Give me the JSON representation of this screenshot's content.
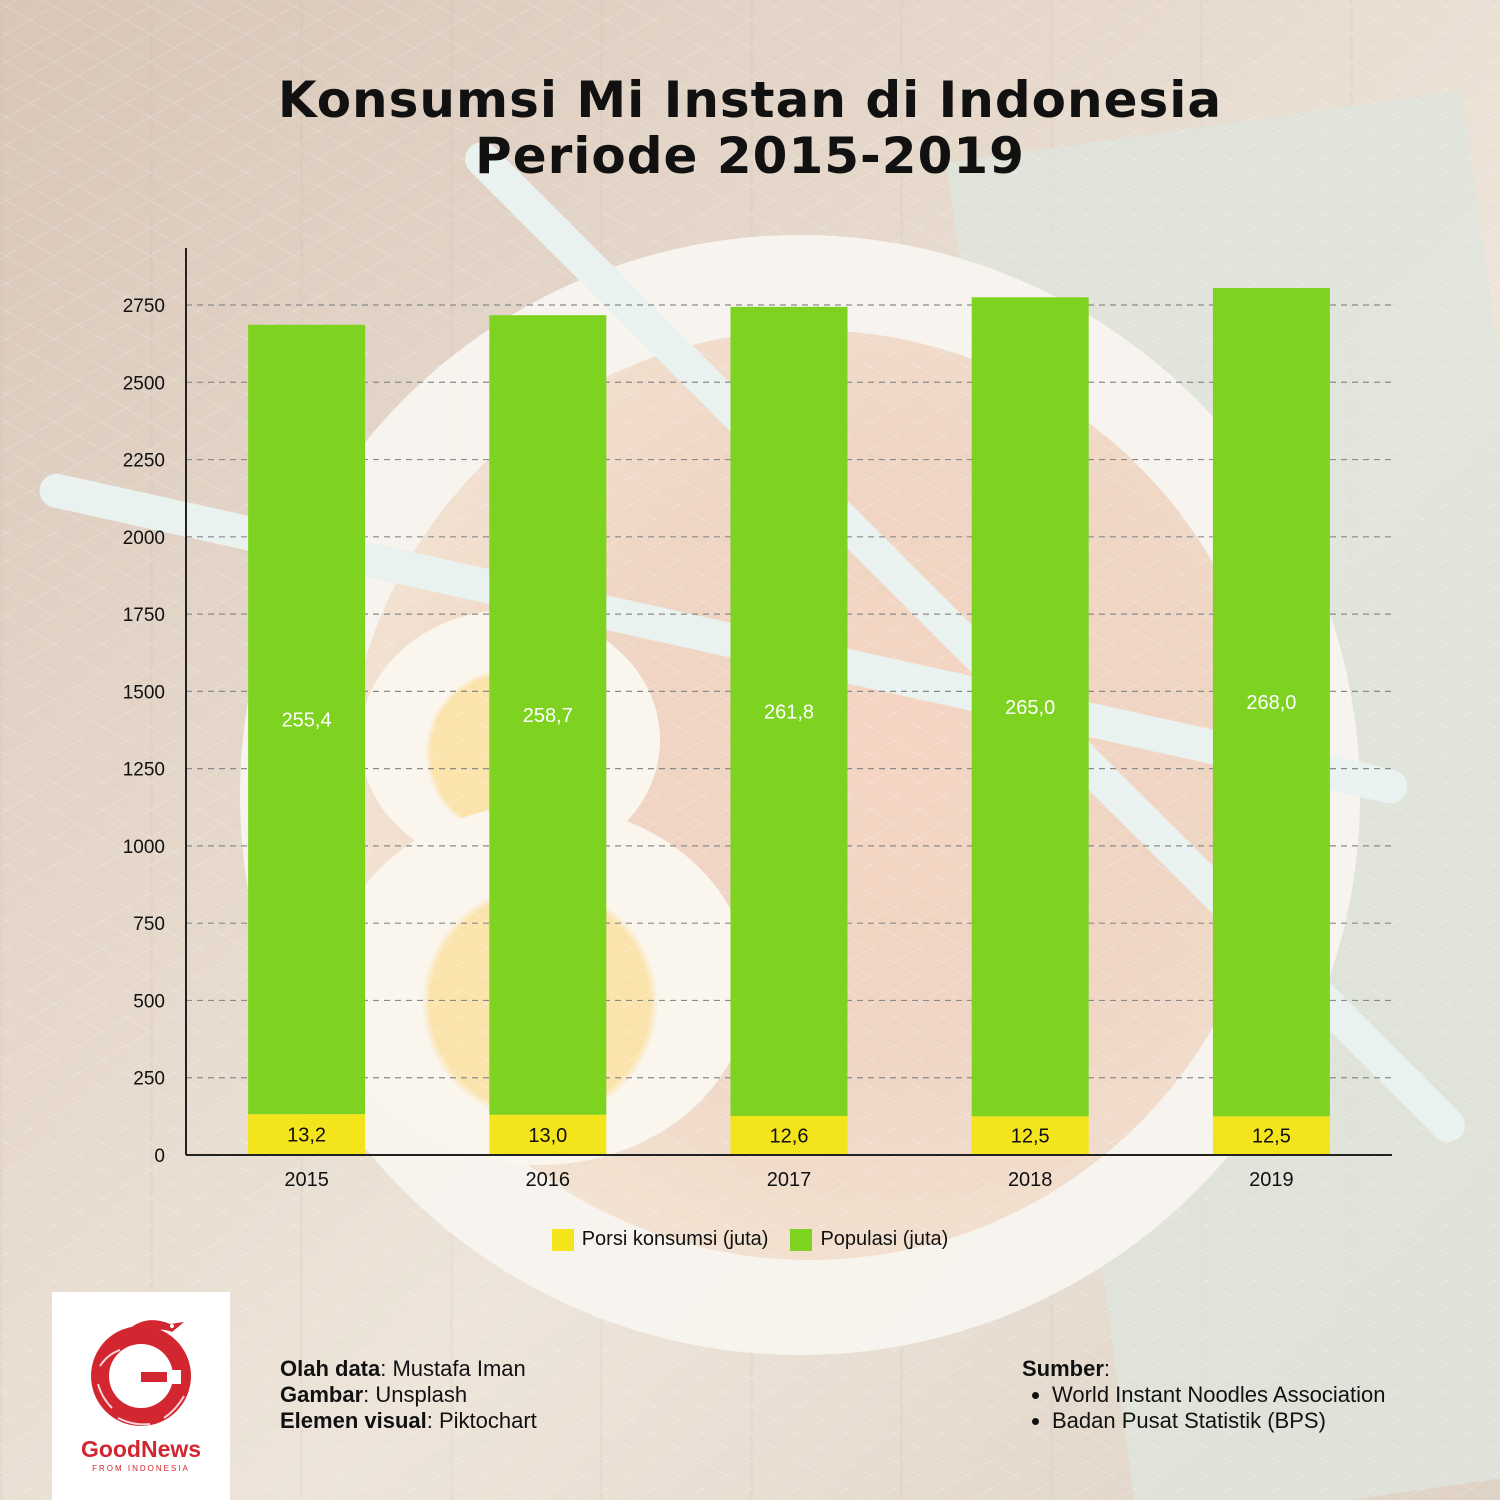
{
  "title": {
    "line1": "Konsumsi Mi Instan di Indonesia",
    "line2": "Periode 2015-2019"
  },
  "chart_data": {
    "type": "bar",
    "stacked": true,
    "categories": [
      "2015",
      "2016",
      "2017",
      "2018",
      "2019"
    ],
    "series": [
      {
        "name": "Porsi konsumsi (juta)",
        "color": "#f4e41c",
        "values": [
          13.2,
          13.0,
          12.6,
          12.5,
          12.5
        ],
        "labels": [
          "13,2",
          "13,0",
          "12,6",
          "12,5",
          "12,5"
        ],
        "displayed_values": [
          132,
          130,
          126,
          125,
          125
        ]
      },
      {
        "name": "Populasi (juta)",
        "color": "#7ed321",
        "values": [
          255.4,
          258.7,
          261.8,
          265.0,
          268.0
        ],
        "labels": [
          "255,4",
          "258,7",
          "261,8",
          "265,0",
          "268,0"
        ],
        "displayed_values": [
          2554,
          2587,
          2618,
          2650,
          2680
        ]
      }
    ],
    "yticks": [
      0,
      250,
      500,
      750,
      1000,
      1250,
      1500,
      1750,
      2000,
      2250,
      2500,
      2750
    ],
    "ylim": [
      0,
      2750
    ],
    "grid": "horizontal dashed",
    "legend_position": "bottom-center"
  },
  "legend": {
    "items": [
      {
        "label": "Porsi konsumsi (juta)",
        "color": "#f4e41c"
      },
      {
        "label": "Populasi (juta)",
        "color": "#7ed321"
      }
    ]
  },
  "logo": {
    "name": "GoodNews",
    "tagline": "FROM INDONESIA",
    "color": "#d22630"
  },
  "credits": [
    {
      "key": "Olah data",
      "value": ": Mustafa Iman"
    },
    {
      "key": "Gambar",
      "value": ": Unsplash"
    },
    {
      "key": "Elemen visual",
      "value": ": Piktochart"
    }
  ],
  "sources": {
    "heading": "Sumber",
    "colon": ":",
    "items": [
      "World Instant Noodles Association",
      "Badan Pusat Statistik (BPS)"
    ]
  }
}
